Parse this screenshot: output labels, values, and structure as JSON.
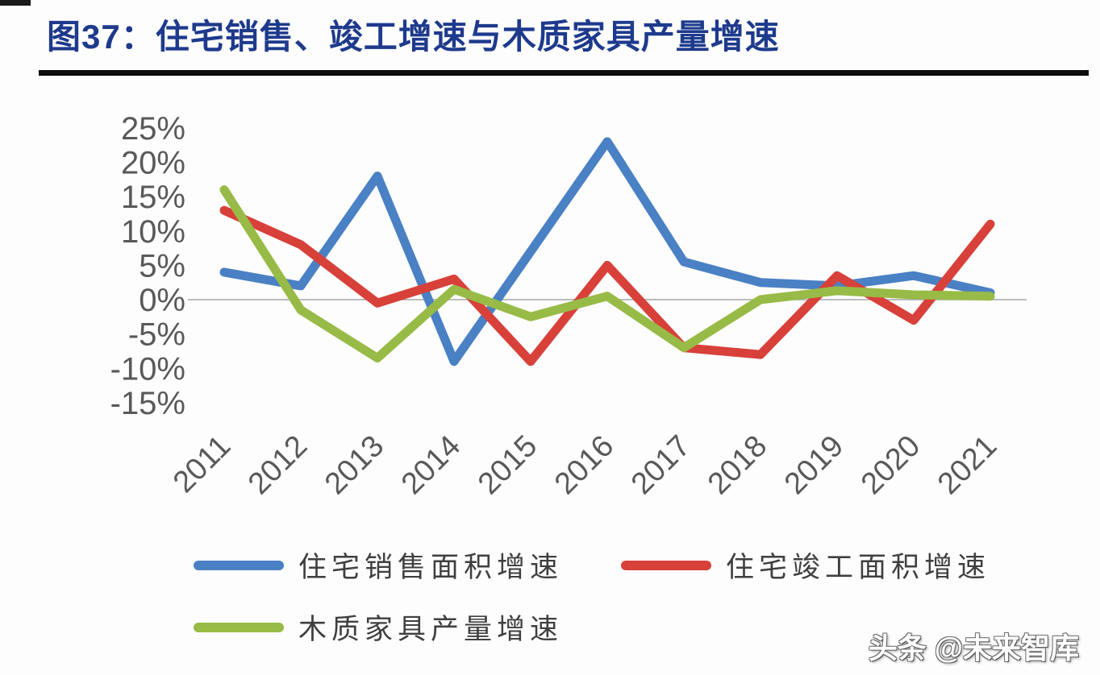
{
  "page": {
    "title": "图37：住宅销售、竣工增速与木质家具产量增速",
    "watermark": "头条 @未来智库"
  },
  "chart_data": {
    "type": "line",
    "title": "图37：住宅销售、竣工增速与木质家具产量增速",
    "x": [
      "2011",
      "2012",
      "2013",
      "2014",
      "2015",
      "2016",
      "2017",
      "2018",
      "2019",
      "2020",
      "2021"
    ],
    "series": [
      {
        "id": "residential-sales-growth",
        "name": "住宅销售面积增速",
        "color": "#4a80c4",
        "values": [
          4,
          2,
          18,
          -9,
          7,
          23,
          5.5,
          2.5,
          2,
          3.5,
          1
        ]
      },
      {
        "id": "residential-completion-growth",
        "name": "住宅竣工面积增速",
        "color": "#d8403a",
        "values": [
          13,
          8,
          -0.5,
          3,
          -9,
          5,
          -7,
          -8,
          3.5,
          -3,
          11
        ]
      },
      {
        "id": "wooden-furniture-output-growth",
        "name": "木质家具产量增速",
        "color": "#97bb46",
        "values": [
          16,
          -1.5,
          -8.5,
          1.5,
          -2.5,
          0.5,
          -7,
          0,
          1.3,
          0.7,
          0.5
        ]
      }
    ],
    "xlabel": "",
    "ylabel": "",
    "ylim": [
      -15,
      25
    ],
    "y_axis": {
      "ticks": [
        25,
        20,
        15,
        10,
        5,
        0,
        -5,
        -10,
        -15
      ],
      "suffix": "%"
    },
    "grid": "zero-line-only",
    "zero_line_color": "#a6a6a6",
    "legend_position": "bottom-left",
    "legend_rows": [
      [
        0,
        1
      ],
      [
        2
      ]
    ]
  }
}
